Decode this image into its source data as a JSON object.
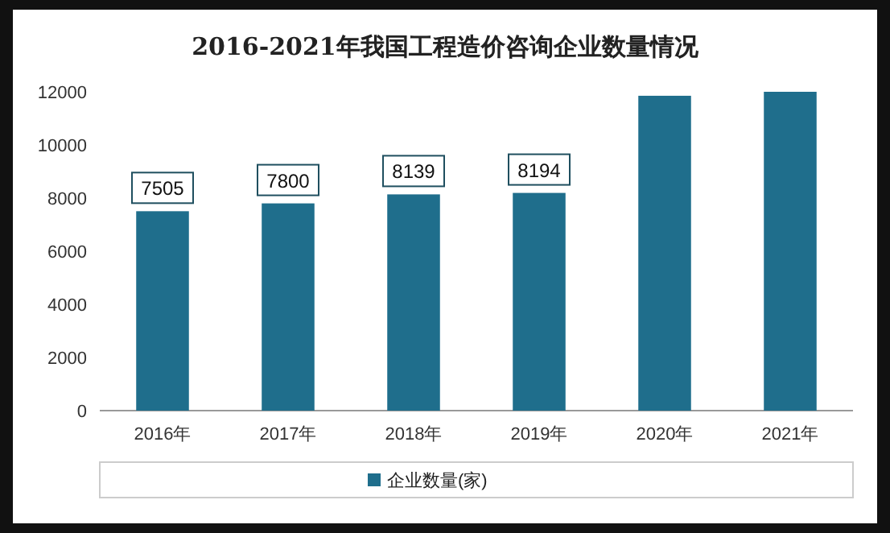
{
  "chart_data": {
    "type": "bar",
    "title": "2016-2021年我国工程造价咨询企业数量情况",
    "categories": [
      "2016年",
      "2017年",
      "2018年",
      "2019年",
      "2020年",
      "2021年"
    ],
    "series": [
      {
        "name": "企业数量(家)",
        "color": "#1f6e8c",
        "values": [
          7505,
          7800,
          8139,
          8194,
          11850,
          12000
        ],
        "value_labels": [
          "7505",
          "7800",
          "8139",
          "8194",
          null,
          null
        ]
      }
    ],
    "ylim": [
      0,
      12000
    ],
    "yticks": [
      0,
      2000,
      4000,
      6000,
      8000,
      10000,
      12000
    ],
    "grid": false,
    "legend": "bottom"
  }
}
